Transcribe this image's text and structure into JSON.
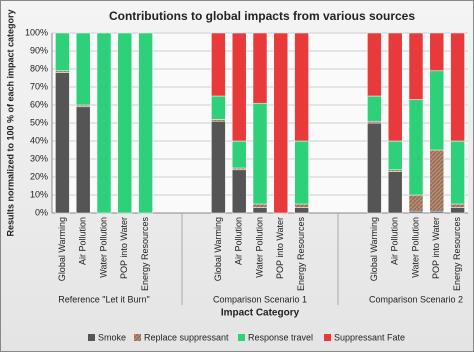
{
  "chart_data": {
    "type": "stacked_bar",
    "title": "Contributions to global impacts from various sources",
    "y_label": "Results normalized to 100 % of each impact category",
    "x_label": "Impact Category",
    "groups": [
      "Reference \"Let it Burn\"",
      "Comparison Scenario 1",
      "Comparison Scenario 2"
    ],
    "categories": [
      "Global Warming",
      "Air Pollution",
      "Water Pollution",
      "POP into Water",
      "Energy Resources",
      "Global Warming",
      "Air Pollution",
      "Water Pollution",
      "POP into Water",
      "Energy Resources",
      "Global Warming",
      "Air Pollution",
      "Water Pollution",
      "POP into Water",
      "Energy Resources"
    ],
    "series": [
      {
        "name": "Smoke",
        "color": "#555555",
        "values": [
          78,
          59,
          0,
          0,
          0,
          51,
          24,
          3,
          0,
          3,
          50,
          23,
          1,
          1,
          3
        ]
      },
      {
        "name": "Replace suppressant",
        "color": "#e0802c",
        "values": [
          1,
          1,
          0,
          0,
          0,
          1,
          1,
          2,
          0,
          2,
          1,
          1,
          9,
          34,
          2
        ]
      },
      {
        "name": "Response travel",
        "color": "#2fd07a",
        "values": [
          21,
          40,
          100,
          100,
          100,
          13,
          15,
          56,
          0,
          35,
          14,
          16,
          53,
          44,
          35
        ]
      },
      {
        "name": "Suppressant Fate",
        "color": "#e8393b",
        "values": [
          0,
          0,
          0,
          0,
          0,
          35,
          60,
          39,
          100,
          60,
          35,
          60,
          37,
          21,
          60
        ]
      }
    ],
    "ylim": [
      0,
      100
    ],
    "yticks": [
      {
        "value": 0,
        "label": "0%"
      },
      {
        "value": 10,
        "label": "10%"
      },
      {
        "value": 20,
        "label": "20%"
      },
      {
        "value": 30,
        "label": "30%"
      },
      {
        "value": 40,
        "label": "40%"
      },
      {
        "value": 50,
        "label": "50%"
      },
      {
        "value": 60,
        "label": "60%"
      },
      {
        "value": 70,
        "label": "70%"
      },
      {
        "value": 80,
        "label": "80%"
      },
      {
        "value": 90,
        "label": "90%"
      },
      {
        "value": 100,
        "label": "100%"
      }
    ],
    "grid": true
  }
}
